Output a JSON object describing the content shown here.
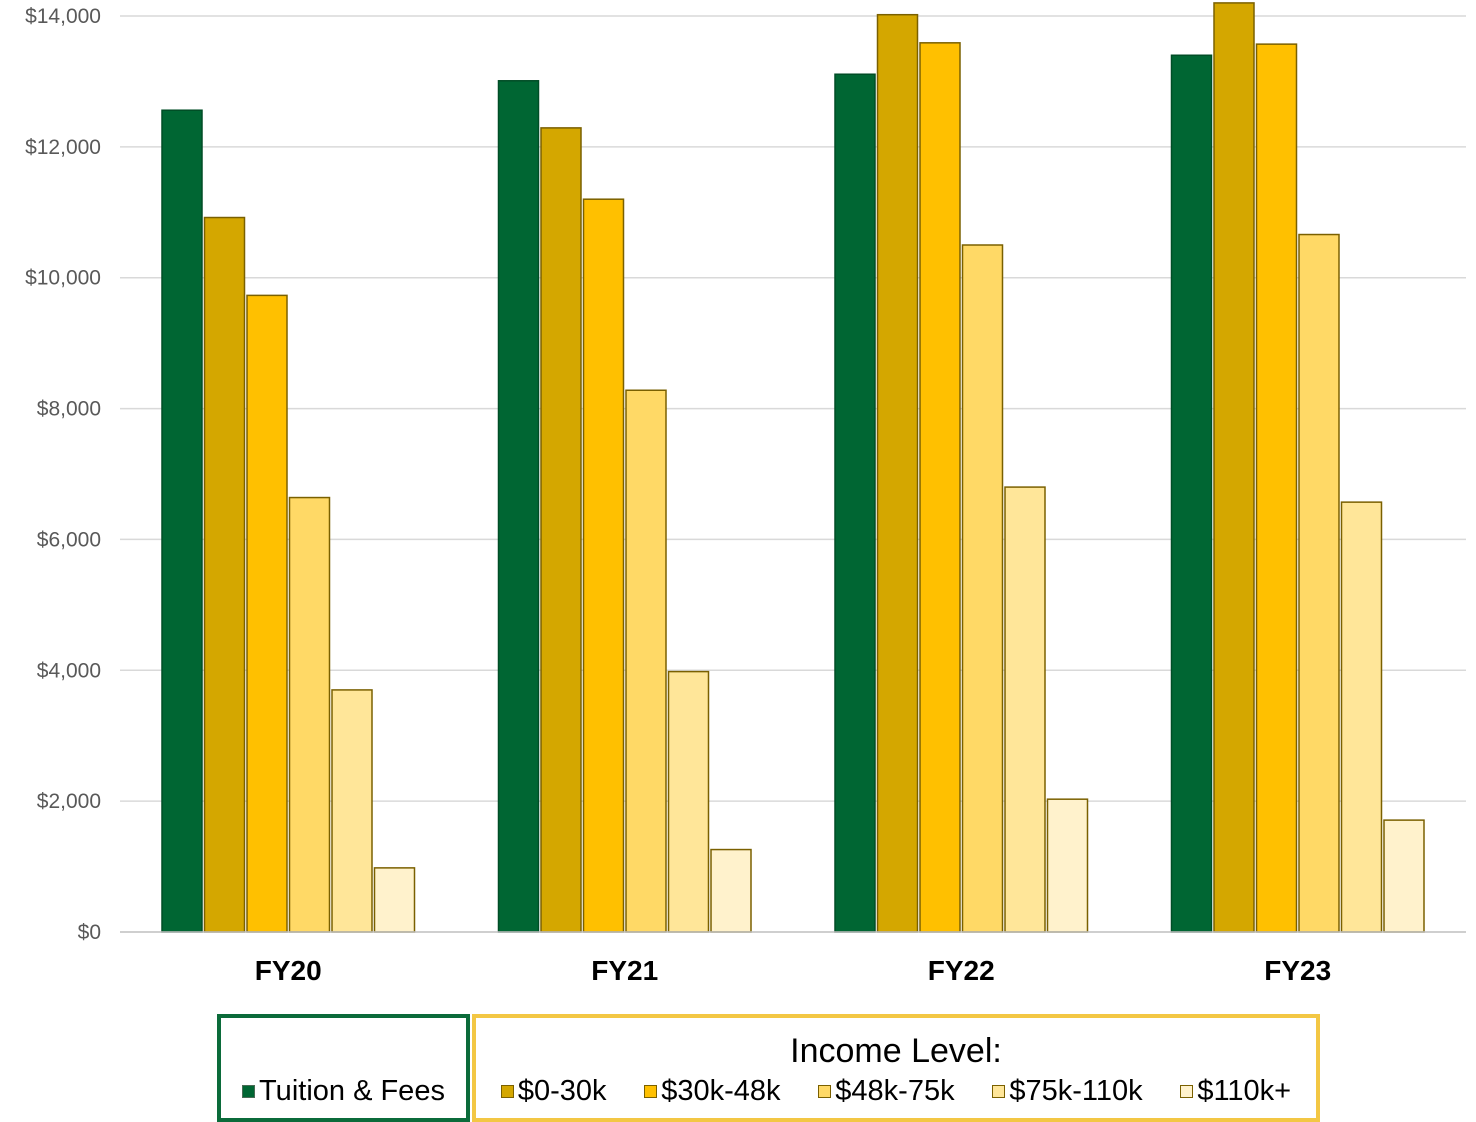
{
  "chart_data": {
    "type": "bar",
    "title": "",
    "xlabel": "",
    "ylabel": "",
    "categories": [
      "FY20",
      "FY21",
      "FY22",
      "FY23"
    ],
    "ylim": [
      0,
      14000
    ],
    "yticks": [
      0,
      2000,
      4000,
      6000,
      8000,
      10000,
      12000,
      14000
    ],
    "ytick_labels": [
      "$0",
      "$2,000",
      "$4,000",
      "$6,000",
      "$8,000",
      "$10,000",
      "$12,000",
      "$14,000"
    ],
    "grid": true,
    "legend_position": "bottom",
    "series": [
      {
        "name": "Tuition & Fees",
        "color": "#006633",
        "values": [
          12560,
          13010,
          13110,
          13400
        ]
      },
      {
        "name": "$0-30k",
        "color": "#d4a700",
        "values": [
          10920,
          12290,
          14020,
          14200
        ]
      },
      {
        "name": "$30k-48k",
        "color": "#ffc000",
        "values": [
          9730,
          11200,
          13590,
          13570
        ]
      },
      {
        "name": "$48k-75k",
        "color": "#ffd966",
        "values": [
          6640,
          8280,
          10500,
          10660
        ]
      },
      {
        "name": "$75k-110k",
        "color": "#ffe699",
        "values": [
          3700,
          3980,
          6800,
          6570
        ]
      },
      {
        "name": "$110k+",
        "color": "#fff2cc",
        "values": [
          980,
          1260,
          2030,
          1710
        ]
      }
    ]
  },
  "legend": {
    "income_title": "Income Level:"
  }
}
